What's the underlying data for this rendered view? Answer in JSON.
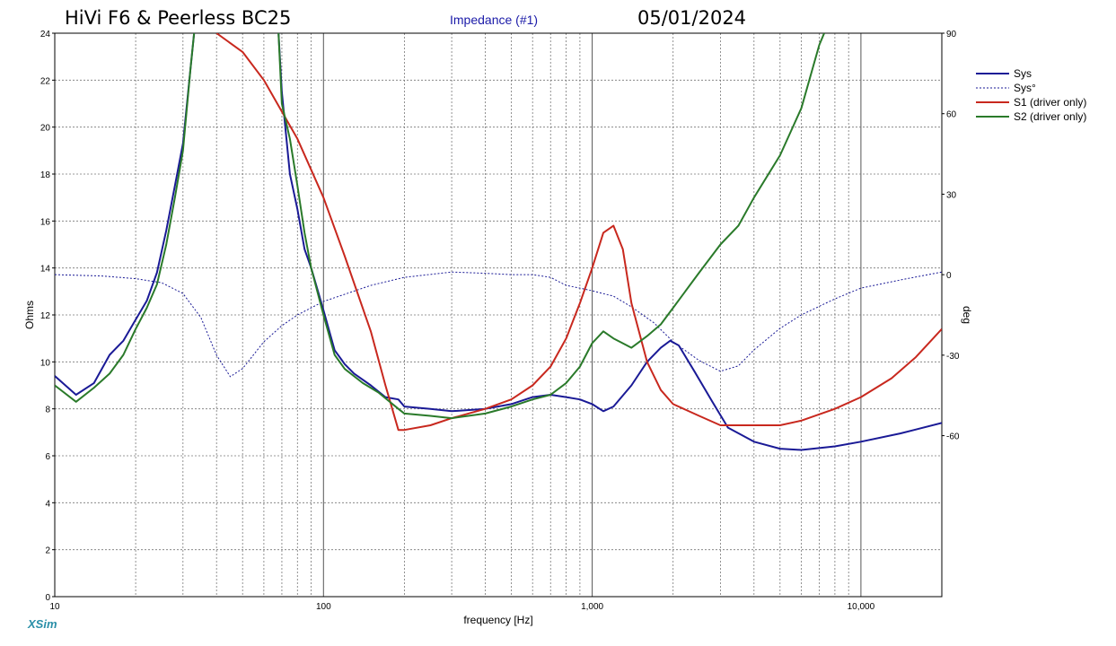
{
  "header": {
    "title": "HiVi F6 &  Peerless BC25",
    "subtitle": "Impedance (#1)",
    "date": "05/01/2024"
  },
  "brand": "XSim",
  "chart_data": {
    "type": "line",
    "xscale": "log",
    "xlim": [
      10,
      20000
    ],
    "ylim": [
      0,
      24
    ],
    "y2lim": [
      -120,
      90
    ],
    "xlabel": "frequency [Hz]",
    "ylabel": "Ohms",
    "y2label": "deg",
    "xticks": [
      10,
      100,
      1000,
      10000
    ],
    "xtick_labels": [
      "10",
      "100",
      "1,000",
      "10,000"
    ],
    "yticks": [
      0,
      2,
      4,
      6,
      8,
      10,
      12,
      14,
      16,
      18,
      20,
      22,
      24
    ],
    "y2ticks": [
      -60,
      -30,
      0,
      30,
      60,
      90
    ],
    "grid": true,
    "legend_position": "top-right",
    "series": [
      {
        "name": "Sys",
        "axis": "left",
        "color": "#1a1a96",
        "style": "solid",
        "points": [
          [
            10,
            9.4
          ],
          [
            12,
            8.6
          ],
          [
            14,
            9.1
          ],
          [
            16,
            10.3
          ],
          [
            18,
            10.9
          ],
          [
            20,
            11.8
          ],
          [
            22,
            12.6
          ],
          [
            24,
            13.8
          ],
          [
            26,
            15.6
          ],
          [
            28,
            17.5
          ],
          [
            30,
            19.3
          ],
          [
            32,
            22.5
          ],
          [
            33,
            24
          ]
        ]
      },
      {
        "name": "Sys",
        "axis": "left",
        "color": "#1a1a96",
        "style": "solid",
        "points": [
          [
            68,
            24
          ],
          [
            70,
            21.5
          ],
          [
            75,
            18.0
          ],
          [
            80,
            16.5
          ],
          [
            85,
            14.8
          ],
          [
            90,
            14.0
          ],
          [
            100,
            12.2
          ],
          [
            110,
            10.5
          ],
          [
            120,
            9.9
          ],
          [
            130,
            9.5
          ],
          [
            150,
            9.0
          ],
          [
            170,
            8.5
          ],
          [
            190,
            8.4
          ],
          [
            200,
            8.1
          ],
          [
            250,
            8.0
          ],
          [
            300,
            7.9
          ],
          [
            400,
            8.0
          ],
          [
            500,
            8.2
          ],
          [
            600,
            8.5
          ],
          [
            700,
            8.6
          ],
          [
            800,
            8.5
          ],
          [
            900,
            8.4
          ],
          [
            1000,
            8.2
          ],
          [
            1100,
            7.9
          ],
          [
            1200,
            8.1
          ],
          [
            1400,
            9.0
          ],
          [
            1600,
            10.0
          ],
          [
            1800,
            10.6
          ],
          [
            1950,
            10.9
          ],
          [
            2100,
            10.7
          ],
          [
            2400,
            9.6
          ],
          [
            2800,
            8.3
          ],
          [
            3200,
            7.2
          ],
          [
            4000,
            6.6
          ],
          [
            5000,
            6.3
          ],
          [
            6000,
            6.25
          ],
          [
            8000,
            6.4
          ],
          [
            10000,
            6.6
          ],
          [
            14000,
            6.95
          ],
          [
            20000,
            7.4
          ]
        ]
      },
      {
        "name": "Sys°",
        "axis": "right",
        "color": "#1a1a96",
        "style": "dotted",
        "points": [
          [
            10,
            0
          ],
          [
            15,
            -0.5
          ],
          [
            20,
            -1.5
          ],
          [
            25,
            -3
          ],
          [
            30,
            -7
          ],
          [
            35,
            -16
          ],
          [
            40,
            -30
          ],
          [
            45,
            -38
          ],
          [
            50,
            -35
          ],
          [
            60,
            -25
          ],
          [
            70,
            -19
          ],
          [
            80,
            -15
          ],
          [
            100,
            -10
          ],
          [
            150,
            -4
          ],
          [
            200,
            -1
          ],
          [
            300,
            1
          ],
          [
            400,
            0.5
          ],
          [
            500,
            0
          ],
          [
            600,
            0
          ],
          [
            700,
            -1
          ],
          [
            800,
            -4
          ],
          [
            900,
            -5
          ],
          [
            1000,
            -6
          ],
          [
            1200,
            -8
          ],
          [
            1400,
            -12
          ],
          [
            1700,
            -18
          ],
          [
            2000,
            -25
          ],
          [
            2500,
            -32
          ],
          [
            3000,
            -36
          ],
          [
            3500,
            -34
          ],
          [
            4000,
            -28
          ],
          [
            5000,
            -20
          ],
          [
            6000,
            -15
          ],
          [
            8000,
            -9
          ],
          [
            10000,
            -5
          ],
          [
            14000,
            -2
          ],
          [
            20000,
            1
          ]
        ]
      },
      {
        "name": "S1 (driver only)",
        "axis": "left",
        "color": "#c8281e",
        "style": "solid",
        "points": [
          [
            40,
            24
          ],
          [
            50,
            23.2
          ],
          [
            60,
            22.0
          ],
          [
            80,
            19.5
          ],
          [
            100,
            17.0
          ],
          [
            120,
            14.5
          ],
          [
            150,
            11.3
          ],
          [
            170,
            9.0
          ],
          [
            190,
            7.1
          ],
          [
            200,
            7.1
          ],
          [
            250,
            7.3
          ],
          [
            300,
            7.6
          ],
          [
            400,
            8.0
          ],
          [
            500,
            8.4
          ],
          [
            600,
            9.0
          ],
          [
            700,
            9.8
          ],
          [
            800,
            11.0
          ],
          [
            900,
            12.5
          ],
          [
            1000,
            14.0
          ],
          [
            1100,
            15.5
          ],
          [
            1200,
            15.8
          ],
          [
            1300,
            14.8
          ],
          [
            1400,
            12.5
          ],
          [
            1600,
            10.0
          ],
          [
            1800,
            8.8
          ],
          [
            2000,
            8.2
          ],
          [
            2500,
            7.7
          ],
          [
            3000,
            7.3
          ],
          [
            4000,
            7.3
          ],
          [
            5000,
            7.3
          ],
          [
            6000,
            7.5
          ],
          [
            8000,
            8.0
          ],
          [
            10000,
            8.5
          ],
          [
            13000,
            9.3
          ],
          [
            16000,
            10.2
          ],
          [
            20000,
            11.4
          ]
        ]
      },
      {
        "name": "S2 (driver only)",
        "axis": "left",
        "color": "#2a7a2a",
        "style": "solid",
        "points": [
          [
            10,
            9.0
          ],
          [
            12,
            8.3
          ],
          [
            14,
            8.9
          ],
          [
            16,
            9.5
          ],
          [
            18,
            10.3
          ],
          [
            20,
            11.4
          ],
          [
            22,
            12.3
          ],
          [
            24,
            13.3
          ],
          [
            26,
            15.0
          ],
          [
            28,
            17.0
          ],
          [
            30,
            19.0
          ],
          [
            32,
            22.5
          ],
          [
            33,
            24
          ]
        ]
      },
      {
        "name": "S2 (driver only)",
        "axis": "left",
        "color": "#2a7a2a",
        "style": "solid",
        "points": [
          [
            68,
            24
          ],
          [
            70,
            21.0
          ],
          [
            75,
            19.5
          ],
          [
            80,
            17.5
          ],
          [
            85,
            15.5
          ],
          [
            90,
            14.0
          ],
          [
            100,
            12.0
          ],
          [
            110,
            10.3
          ],
          [
            120,
            9.7
          ],
          [
            140,
            9.1
          ],
          [
            160,
            8.7
          ],
          [
            190,
            8.0
          ],
          [
            200,
            7.8
          ],
          [
            250,
            7.7
          ],
          [
            300,
            7.6
          ],
          [
            400,
            7.8
          ],
          [
            500,
            8.1
          ],
          [
            600,
            8.4
          ],
          [
            700,
            8.6
          ],
          [
            800,
            9.1
          ],
          [
            900,
            9.8
          ],
          [
            1000,
            10.8
          ],
          [
            1100,
            11.3
          ],
          [
            1200,
            11.0
          ],
          [
            1400,
            10.6
          ],
          [
            1600,
            11.1
          ],
          [
            1800,
            11.6
          ],
          [
            2000,
            12.3
          ],
          [
            2500,
            13.8
          ],
          [
            3000,
            15.0
          ],
          [
            3500,
            15.8
          ],
          [
            4000,
            17.0
          ],
          [
            5000,
            18.8
          ],
          [
            6000,
            20.8
          ],
          [
            7000,
            23.5
          ],
          [
            7300,
            24
          ]
        ]
      }
    ]
  },
  "legend": [
    {
      "label": "Sys",
      "color": "#1a1a96",
      "style": "solid"
    },
    {
      "label": "Sys°",
      "color": "#1a1a96",
      "style": "dotted"
    },
    {
      "label": "S1 (driver only)",
      "color": "#c8281e",
      "style": "solid"
    },
    {
      "label": "S2 (driver only)",
      "color": "#2a7a2a",
      "style": "solid"
    }
  ]
}
